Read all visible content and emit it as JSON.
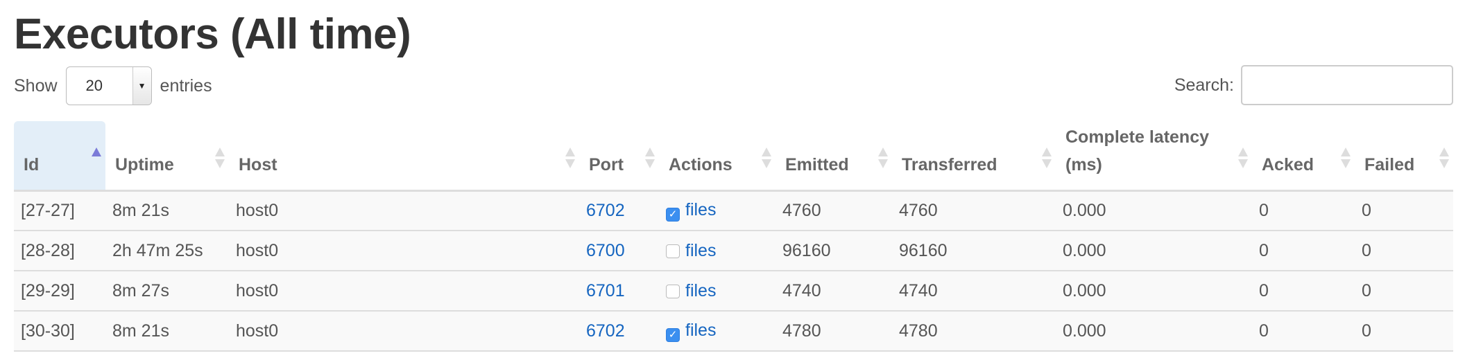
{
  "title": "Executors (All time)",
  "length": {
    "show_label": "Show",
    "value": "20",
    "entries_label": "entries"
  },
  "search": {
    "label": "Search:",
    "value": ""
  },
  "colors": {
    "link": "#1565c0",
    "sorted_header": "#e3eef8",
    "checkbox_checked": "#3b8ff0"
  },
  "table": {
    "headers": [
      "Id",
      "Uptime",
      "Host",
      "Port",
      "Actions",
      "Emitted",
      "Transferred",
      "Complete latency (ms)",
      "Acked",
      "Failed"
    ],
    "sorted_column": "Id",
    "sort_direction": "ascending",
    "rows": [
      {
        "id": "[27-27]",
        "uptime": "8m 21s",
        "host": "host0",
        "port": "6702",
        "checked": true,
        "action": "files",
        "emitted": "4760",
        "transferred": "4760",
        "latency": "0.000",
        "acked": "0",
        "failed": "0"
      },
      {
        "id": "[28-28]",
        "uptime": "2h 47m 25s",
        "host": "host0",
        "port": "6700",
        "checked": false,
        "action": "files",
        "emitted": "96160",
        "transferred": "96160",
        "latency": "0.000",
        "acked": "0",
        "failed": "0"
      },
      {
        "id": "[29-29]",
        "uptime": "8m 27s",
        "host": "host0",
        "port": "6701",
        "checked": false,
        "action": "files",
        "emitted": "4740",
        "transferred": "4740",
        "latency": "0.000",
        "acked": "0",
        "failed": "0"
      },
      {
        "id": "[30-30]",
        "uptime": "8m 21s",
        "host": "host0",
        "port": "6702",
        "checked": true,
        "action": "files",
        "emitted": "4780",
        "transferred": "4780",
        "latency": "0.000",
        "acked": "0",
        "failed": "0"
      }
    ]
  }
}
